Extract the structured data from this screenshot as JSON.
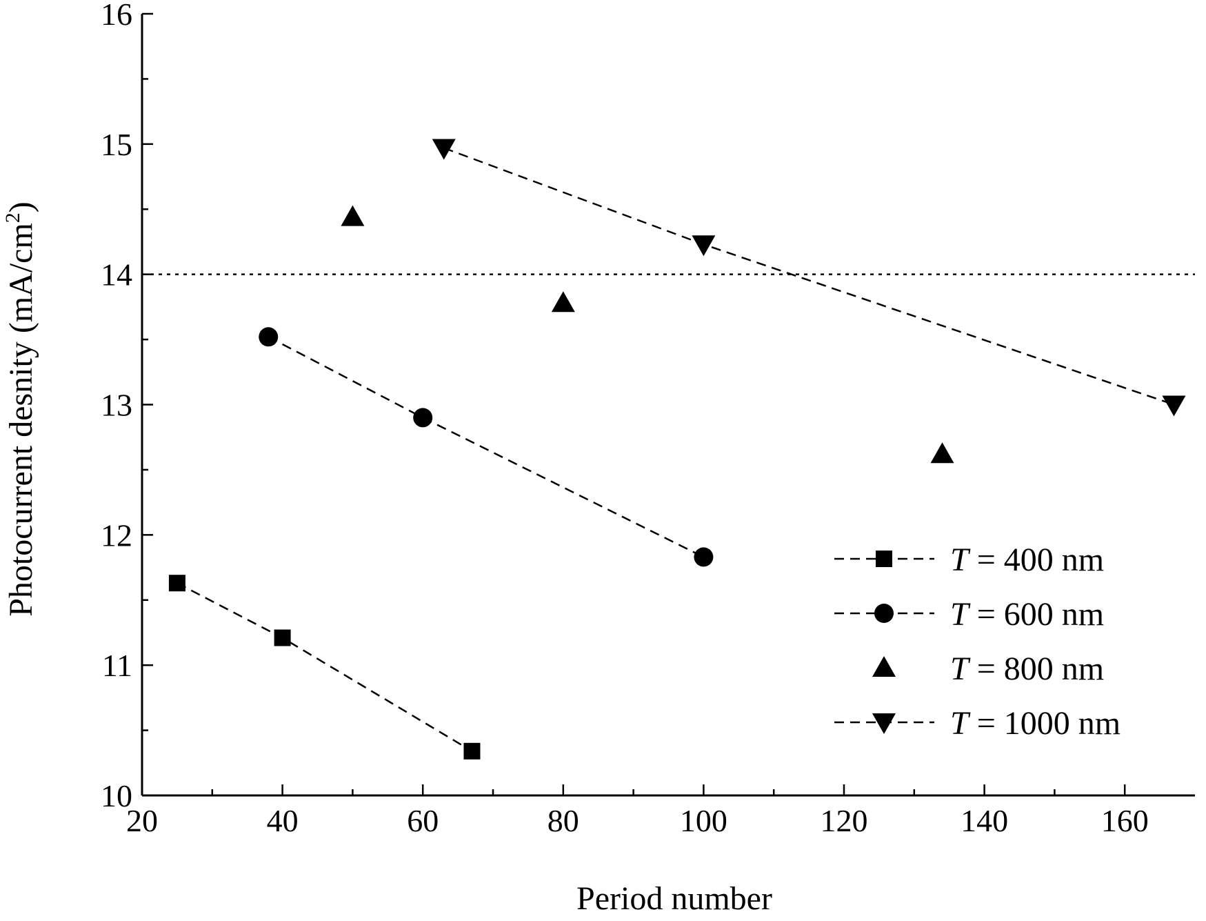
{
  "chart_data": {
    "type": "scatter",
    "title": "",
    "xlabel": "Period number",
    "ylabel_main": "Photocurrent desnity (mA/cm",
    "ylabel_sup": "2",
    "ylabel_end": ")",
    "xlim": [
      20,
      170
    ],
    "ylim": [
      10,
      16
    ],
    "x_ticks": [
      20,
      40,
      60,
      80,
      100,
      120,
      140,
      160
    ],
    "x_minor_ticks": [
      30,
      50,
      70,
      90,
      110,
      130,
      150
    ],
    "y_ticks": [
      10,
      11,
      12,
      13,
      14,
      15,
      16
    ],
    "y_minor_ticks": [
      10.5,
      11.5,
      12.5,
      13.5,
      14.5,
      15.5
    ],
    "reference_line": {
      "y": 14,
      "style": "dotted"
    },
    "legend_position": "bottom-right",
    "series": [
      {
        "name": "T = 400 nm",
        "name_var": "T",
        "name_rest": " = 400 nm",
        "marker": "square",
        "line": "dashed",
        "x": [
          25,
          40,
          67
        ],
        "y": [
          11.63,
          11.21,
          10.34
        ]
      },
      {
        "name": "T = 600 nm",
        "name_var": "T",
        "name_rest": " = 600 nm",
        "marker": "circle",
        "line": "dashed",
        "x": [
          38,
          60,
          100
        ],
        "y": [
          13.52,
          12.9,
          11.83
        ]
      },
      {
        "name": "T = 800 nm",
        "name_var": "T",
        "name_rest": " = 800 nm",
        "marker": "triangle-up",
        "line": "none",
        "x": [
          50,
          80,
          134
        ],
        "y": [
          14.44,
          13.78,
          12.62
        ]
      },
      {
        "name": "T = 1000 nm",
        "name_var": "T",
        "name_rest": " = 1000 nm",
        "marker": "triangle-down",
        "line": "dashed",
        "x": [
          63,
          100,
          167
        ],
        "y": [
          14.97,
          14.23,
          13.0
        ]
      }
    ],
    "colors": {
      "marks": "#000000",
      "background": "#ffffff"
    }
  }
}
